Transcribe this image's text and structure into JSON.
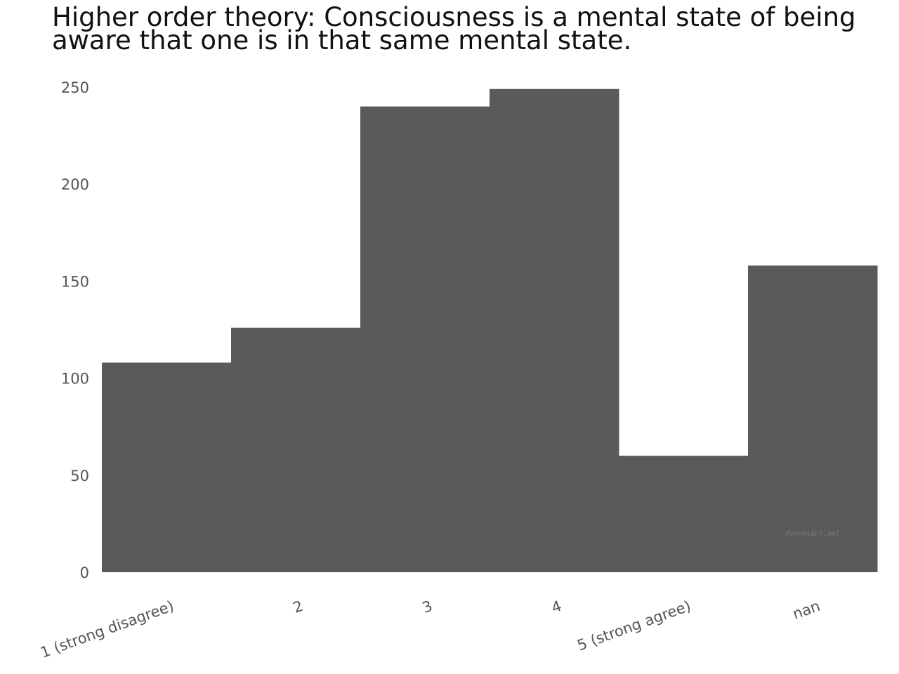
{
  "chart_data": {
    "type": "bar",
    "title": "Higher order theory: Consciousness is a mental state of being aware that one is in that same mental state.",
    "categories": [
      "1 (strong disagree)",
      "2",
      "3",
      "4",
      "5 (strong agree)",
      "nan"
    ],
    "values": [
      108,
      126,
      240,
      249,
      60,
      158
    ],
    "ylim": [
      0,
      250
    ],
    "yticks": [
      0,
      50,
      100,
      150,
      200,
      250
    ],
    "xlabel": "",
    "ylabel": "",
    "grid": false,
    "bar_color": "#5a5a5a",
    "watermark": "dynomight.net"
  }
}
